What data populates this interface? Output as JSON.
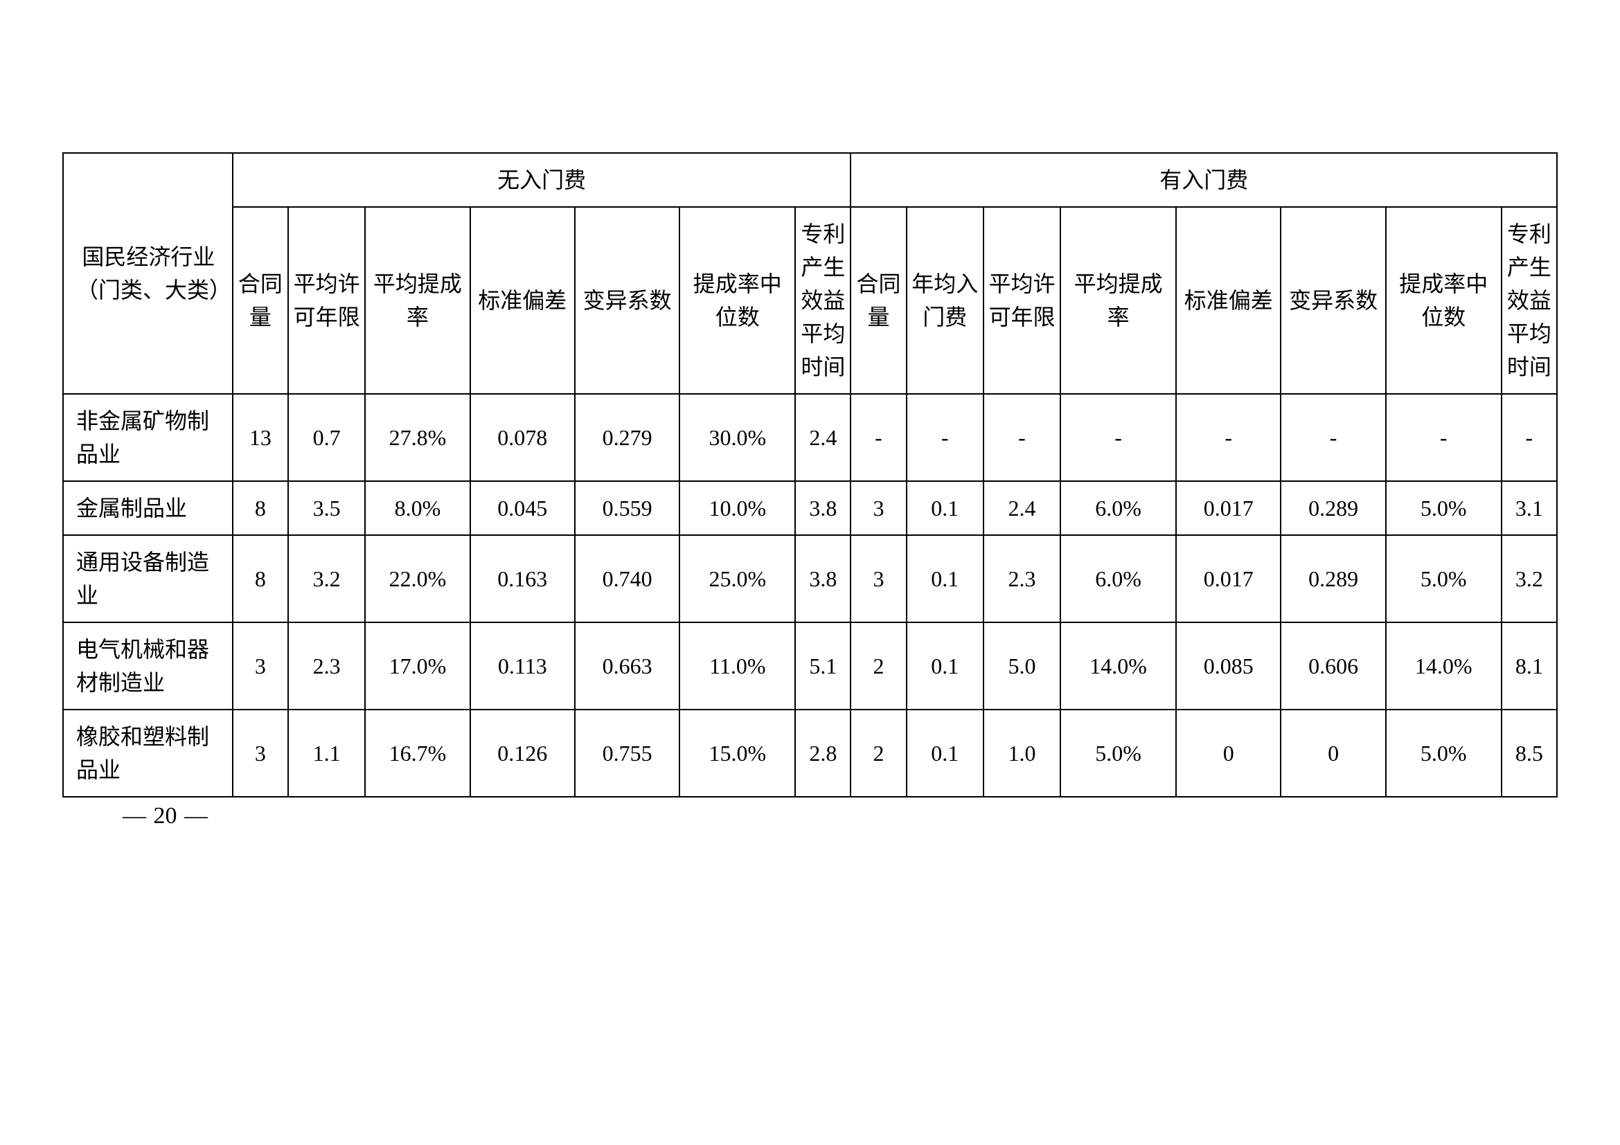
{
  "table": {
    "colgroups": [
      "col-industry",
      "col-narrow",
      "col-med",
      "col-wide",
      "col-wide",
      "col-wide",
      "col-xwide",
      "col-narrow",
      "col-narrow",
      "col-med",
      "col-med",
      "col-xwide",
      "col-wide",
      "col-wide",
      "col-xwide",
      "col-narrow"
    ],
    "industry_header": "国民经济行业（门类、大类）",
    "group_headers": [
      "无入门费",
      "有入门费"
    ],
    "sub_headers_no_fee": [
      "合同量",
      "平均许可年限",
      "平均提成率",
      "标准偏差",
      "变异系数",
      "提成率中位数",
      "专利产生效益平均时间"
    ],
    "sub_headers_fee": [
      "合同量",
      "年均入门费",
      "平均许可年限",
      "平均提成率",
      "标准偏差",
      "变异系数",
      "提成率中位数",
      "专利产生效益平均时间"
    ],
    "rows": [
      {
        "label": "非金属矿物制品业",
        "no_fee": [
          "13",
          "0.7",
          "27.8%",
          "0.078",
          "0.279",
          "30.0%",
          "2.4"
        ],
        "fee": [
          "-",
          "-",
          "-",
          "-",
          "-",
          "-",
          "-",
          "-"
        ]
      },
      {
        "label": "金属制品业",
        "no_fee": [
          "8",
          "3.5",
          "8.0%",
          "0.045",
          "0.559",
          "10.0%",
          "3.8"
        ],
        "fee": [
          "3",
          "0.1",
          "2.4",
          "6.0%",
          "0.017",
          "0.289",
          "5.0%",
          "3.1"
        ]
      },
      {
        "label": "通用设备制造业",
        "no_fee": [
          "8",
          "3.2",
          "22.0%",
          "0.163",
          "0.740",
          "25.0%",
          "3.8"
        ],
        "fee": [
          "3",
          "0.1",
          "2.3",
          "6.0%",
          "0.017",
          "0.289",
          "5.0%",
          "3.2"
        ]
      },
      {
        "label": "电气机械和器材制造业",
        "no_fee": [
          "3",
          "2.3",
          "17.0%",
          "0.113",
          "0.663",
          "11.0%",
          "5.1"
        ],
        "fee": [
          "2",
          "0.1",
          "5.0",
          "14.0%",
          "0.085",
          "0.606",
          "14.0%",
          "8.1"
        ]
      },
      {
        "label": "橡胶和塑料制品业",
        "no_fee": [
          "3",
          "1.1",
          "16.7%",
          "0.126",
          "0.755",
          "15.0%",
          "2.8"
        ],
        "fee": [
          "2",
          "0.1",
          "1.0",
          "5.0%",
          "0",
          "0",
          "5.0%",
          "8.5"
        ]
      }
    ],
    "page_number": "20",
    "border_color": "#000000",
    "background_color": "#ffffff",
    "text_color": "#000000",
    "header_fontsize": 32,
    "body_fontsize": 32
  }
}
